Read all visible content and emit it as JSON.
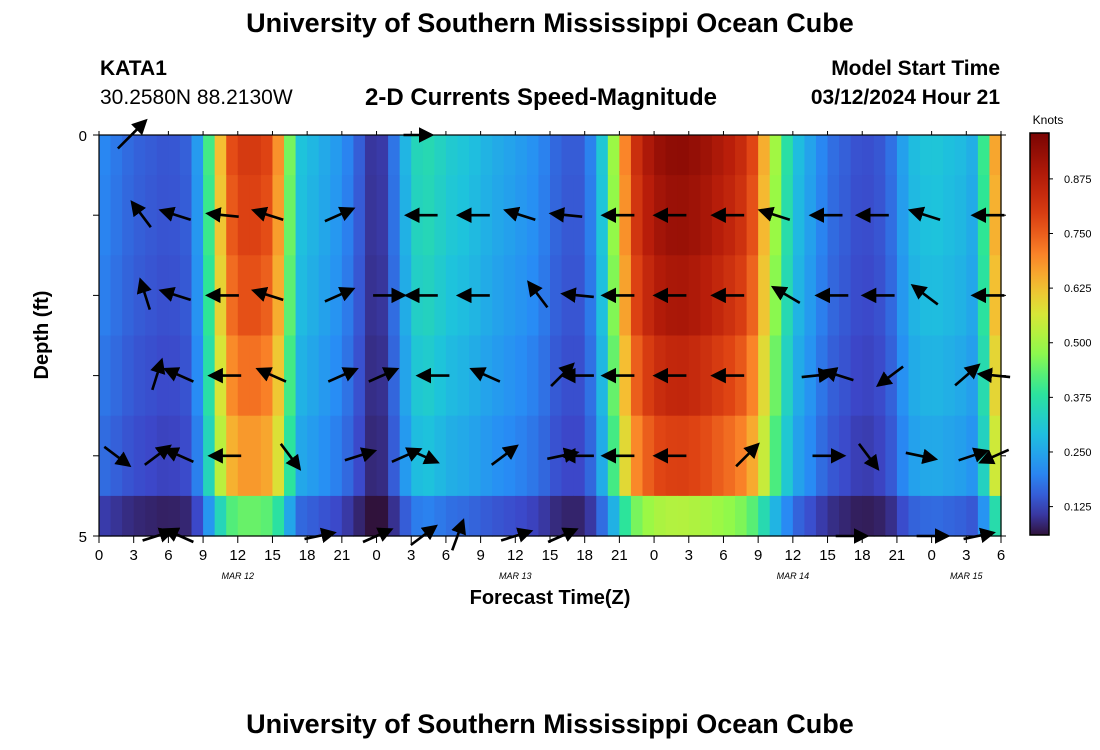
{
  "header": {
    "title": "University of Southern Mississippi Ocean Cube",
    "station": "KATA1",
    "coords": "30.2580N  88.2130W",
    "subtitle": "2-D Currents Speed-Magnitude",
    "model_label": "Model Start Time",
    "model_time": "03/12/2024 Hour 21"
  },
  "footer": {
    "title": "University of Southern Mississippi Ocean Cube"
  },
  "colorbar": {
    "label": "Knots",
    "ticks": [
      "0.125",
      "0.250",
      "0.375",
      "0.500",
      "0.625",
      "0.750",
      "0.875"
    ],
    "tick_values": [
      0.125,
      0.25,
      0.375,
      0.5,
      0.625,
      0.75,
      0.875
    ],
    "min": 0.06,
    "max": 0.98
  },
  "chart_data": {
    "type": "heatmap",
    "title": "2-D Currents Speed-Magnitude",
    "xlabel": "Forecast Time(Z)",
    "ylabel": "Depth (ft)",
    "y_ticks": [
      "0",
      "5"
    ],
    "ylim": [
      0,
      5
    ],
    "x_ticks": [
      "0",
      "3",
      "6",
      "9",
      "12",
      "15",
      "18",
      "21",
      "0",
      "3",
      "6",
      "9",
      "12",
      "15",
      "18",
      "21",
      "0",
      "3",
      "6",
      "9",
      "12",
      "15",
      "18",
      "21",
      "0",
      "3",
      "6"
    ],
    "x_hours": [
      0,
      3,
      6,
      9,
      12,
      15,
      18,
      21,
      24,
      27,
      30,
      33,
      36,
      39,
      42,
      45,
      48,
      51,
      54,
      57,
      60,
      63,
      66,
      69,
      72,
      75,
      78
    ],
    "xlim_hours": [
      0,
      78
    ],
    "month_labels": [
      {
        "text": "MAR 12",
        "hour": 12
      },
      {
        "text": "MAR 13",
        "hour": 36
      },
      {
        "text": "MAR 14",
        "hour": 60
      },
      {
        "text": "MAR 15",
        "hour": 75
      }
    ],
    "depth_levels_ft": [
      0,
      1,
      2,
      3,
      4,
      5
    ],
    "speed_profile_hours": [
      0,
      3,
      6,
      8,
      9,
      10,
      11,
      12,
      13,
      14,
      15,
      16,
      17,
      18,
      21,
      23,
      24,
      25,
      26,
      27,
      28,
      29,
      30,
      32,
      33,
      35,
      36,
      38,
      40,
      42,
      43,
      44,
      45,
      46,
      48,
      50,
      52,
      54,
      55,
      56,
      57,
      58,
      60,
      63,
      66,
      68,
      69,
      70,
      72,
      75,
      76,
      77,
      78
    ],
    "speed_profile_knots": [
      0.21,
      0.16,
      0.14,
      0.16,
      0.3,
      0.52,
      0.74,
      0.8,
      0.81,
      0.8,
      0.77,
      0.6,
      0.31,
      0.29,
      0.22,
      0.13,
      0.08,
      0.14,
      0.22,
      0.33,
      0.36,
      0.35,
      0.32,
      0.3,
      0.28,
      0.25,
      0.24,
      0.21,
      0.15,
      0.15,
      0.24,
      0.38,
      0.6,
      0.8,
      0.92,
      0.95,
      0.93,
      0.88,
      0.86,
      0.82,
      0.74,
      0.56,
      0.31,
      0.18,
      0.13,
      0.15,
      0.2,
      0.28,
      0.31,
      0.28,
      0.25,
      0.55,
      0.77
    ],
    "depth_factor": [
      1.0,
      0.98,
      0.95,
      0.9,
      0.84,
      0.55
    ],
    "vectors": [
      {
        "h": 2.8,
        "d": 0,
        "u": 0.9,
        "v": 0.9
      },
      {
        "h": 27.5,
        "d": 0,
        "u": 0.9,
        "v": 0
      },
      {
        "h": 28.5,
        "d": 0.2,
        "u": 0.0,
        "v": 0
      },
      {
        "h": 3.7,
        "d": 1,
        "u": -0.6,
        "v": 0.8
      },
      {
        "h": 6.7,
        "d": 1,
        "u": -0.95,
        "v": 0.3
      },
      {
        "h": 10.8,
        "d": 1,
        "u": -0.99,
        "v": 0.1
      },
      {
        "h": 14.7,
        "d": 1,
        "u": -0.95,
        "v": 0.3
      },
      {
        "h": 20.7,
        "d": 1,
        "u": 0.9,
        "v": 0.4
      },
      {
        "h": 28,
        "d": 1,
        "u": -0.99,
        "v": 0
      },
      {
        "h": 32.5,
        "d": 1,
        "u": -1,
        "v": 0
      },
      {
        "h": 36.5,
        "d": 1,
        "u": -0.95,
        "v": 0.3
      },
      {
        "h": 40.5,
        "d": 1,
        "u": -0.99,
        "v": 0.1
      },
      {
        "h": 45,
        "d": 1,
        "u": -1,
        "v": 0
      },
      {
        "h": 49.5,
        "d": 1,
        "u": -1,
        "v": 0
      },
      {
        "h": 54.5,
        "d": 1,
        "u": -1,
        "v": 0
      },
      {
        "h": 58.5,
        "d": 1,
        "u": -0.95,
        "v": 0.3
      },
      {
        "h": 63,
        "d": 1,
        "u": -1,
        "v": 0
      },
      {
        "h": 67,
        "d": 1,
        "u": -1,
        "v": 0
      },
      {
        "h": 71.5,
        "d": 1,
        "u": -0.95,
        "v": 0.3
      },
      {
        "h": 77,
        "d": 1,
        "u": -1,
        "v": 0
      },
      {
        "h": 4,
        "d": 2,
        "u": -0.3,
        "v": 0.95
      },
      {
        "h": 6.7,
        "d": 2,
        "u": -0.95,
        "v": 0.3
      },
      {
        "h": 10.8,
        "d": 2,
        "u": -1,
        "v": 0
      },
      {
        "h": 14.7,
        "d": 2,
        "u": -0.95,
        "v": 0.3
      },
      {
        "h": 20.7,
        "d": 2,
        "u": 0.9,
        "v": 0.4
      },
      {
        "h": 25,
        "d": 2,
        "u": 1,
        "v": 0
      },
      {
        "h": 28,
        "d": 2,
        "u": -1,
        "v": 0
      },
      {
        "h": 32.5,
        "d": 2,
        "u": -1,
        "v": 0
      },
      {
        "h": 38,
        "d": 2,
        "u": -0.6,
        "v": 0.8
      },
      {
        "h": 41.5,
        "d": 2,
        "u": -0.99,
        "v": 0.1
      },
      {
        "h": 45,
        "d": 2,
        "u": -1,
        "v": 0
      },
      {
        "h": 49.5,
        "d": 2,
        "u": -1,
        "v": 0
      },
      {
        "h": 54.5,
        "d": 2,
        "u": -1,
        "v": 0
      },
      {
        "h": 59.5,
        "d": 2,
        "u": -0.85,
        "v": 0.5
      },
      {
        "h": 63.5,
        "d": 2,
        "u": -1,
        "v": 0
      },
      {
        "h": 67.5,
        "d": 2,
        "u": -1,
        "v": 0
      },
      {
        "h": 71.5,
        "d": 2,
        "u": -0.8,
        "v": 0.6
      },
      {
        "h": 77,
        "d": 2,
        "u": -1,
        "v": 0
      },
      {
        "h": 5,
        "d": 3,
        "u": 0.3,
        "v": 0.95
      },
      {
        "h": 7,
        "d": 3,
        "u": -0.9,
        "v": 0.4
      },
      {
        "h": 11,
        "d": 3,
        "u": -1,
        "v": 0
      },
      {
        "h": 15,
        "d": 3,
        "u": -0.9,
        "v": 0.4
      },
      {
        "h": 21,
        "d": 3,
        "u": 0.9,
        "v": 0.4
      },
      {
        "h": 24.5,
        "d": 3,
        "u": 0.9,
        "v": 0.4
      },
      {
        "h": 29,
        "d": 3,
        "u": -1,
        "v": 0
      },
      {
        "h": 33.5,
        "d": 3,
        "u": -0.9,
        "v": 0.4
      },
      {
        "h": 40,
        "d": 3,
        "u": 0.7,
        "v": 0.7
      },
      {
        "h": 41.5,
        "d": 3,
        "u": -1,
        "v": 0
      },
      {
        "h": 45,
        "d": 3,
        "u": -1,
        "v": 0
      },
      {
        "h": 49.5,
        "d": 3,
        "u": -1,
        "v": 0
      },
      {
        "h": 54.5,
        "d": 3,
        "u": -1,
        "v": 0
      },
      {
        "h": 62,
        "d": 3,
        "u": 0.95,
        "v": 0.1
      },
      {
        "h": 64,
        "d": 3,
        "u": -0.95,
        "v": 0.3
      },
      {
        "h": 68.5,
        "d": 3,
        "u": -0.8,
        "v": -0.6
      },
      {
        "h": 75,
        "d": 3,
        "u": 0.75,
        "v": 0.65
      },
      {
        "h": 77.5,
        "d": 3,
        "u": -0.99,
        "v": 0.1
      },
      {
        "h": 1.5,
        "d": 4,
        "u": 0.8,
        "v": -0.6
      },
      {
        "h": 5,
        "d": 4,
        "u": 0.8,
        "v": 0.6
      },
      {
        "h": 7,
        "d": 4,
        "u": -0.9,
        "v": 0.4
      },
      {
        "h": 11,
        "d": 4,
        "u": -1,
        "v": 0
      },
      {
        "h": 16.5,
        "d": 4,
        "u": 0.6,
        "v": -0.8
      },
      {
        "h": 22.5,
        "d": 4,
        "u": 0.95,
        "v": 0.3
      },
      {
        "h": 26.5,
        "d": 4,
        "u": 0.9,
        "v": 0.4
      },
      {
        "h": 28,
        "d": 4,
        "u": 0.9,
        "v": -0.4
      },
      {
        "h": 35,
        "d": 4,
        "u": 0.8,
        "v": 0.6
      },
      {
        "h": 40,
        "d": 4,
        "u": 0.95,
        "v": 0.2
      },
      {
        "h": 41.5,
        "d": 4,
        "u": -1,
        "v": 0
      },
      {
        "h": 45,
        "d": 4,
        "u": -1,
        "v": 0
      },
      {
        "h": 49.5,
        "d": 4,
        "u": -1,
        "v": 0
      },
      {
        "h": 56,
        "d": 4,
        "u": 0.7,
        "v": 0.7
      },
      {
        "h": 63,
        "d": 4,
        "u": 1,
        "v": 0
      },
      {
        "h": 66.5,
        "d": 4,
        "u": 0.6,
        "v": -0.8
      },
      {
        "h": 71,
        "d": 4,
        "u": 0.95,
        "v": -0.2
      },
      {
        "h": 75.5,
        "d": 4,
        "u": 0.9,
        "v": 0.3
      },
      {
        "h": 77.5,
        "d": 4,
        "u": -0.9,
        "v": -0.4
      },
      {
        "h": 5,
        "d": 5,
        "u": 0.95,
        "v": 0.3
      },
      {
        "h": 7,
        "d": 5,
        "u": -0.9,
        "v": 0.4
      },
      {
        "h": 19,
        "d": 5,
        "u": 0.95,
        "v": 0.2
      },
      {
        "h": 24,
        "d": 5,
        "u": 0.9,
        "v": 0.4
      },
      {
        "h": 28,
        "d": 5,
        "u": 0.8,
        "v": 0.6
      },
      {
        "h": 31,
        "d": 5,
        "u": 0.35,
        "v": 0.95
      },
      {
        "h": 36,
        "d": 5,
        "u": 0.95,
        "v": 0.3
      },
      {
        "h": 40,
        "d": 5,
        "u": 0.9,
        "v": 0.4
      },
      {
        "h": 65,
        "d": 5,
        "u": 1,
        "v": 0
      },
      {
        "h": 72,
        "d": 5,
        "u": 1,
        "v": 0
      },
      {
        "h": 76,
        "d": 5,
        "u": 0.95,
        "v": 0.2
      }
    ]
  }
}
